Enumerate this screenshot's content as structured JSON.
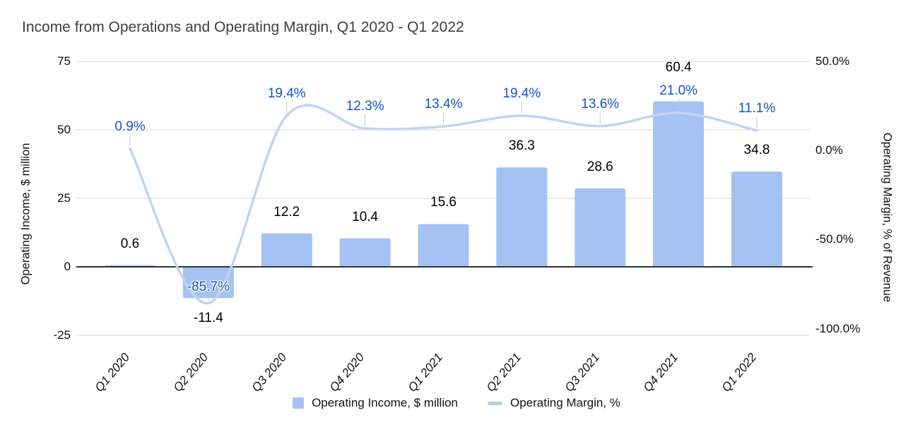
{
  "title": "Income from Operations and Operating Margin, Q1 2020 - Q1 2022",
  "axes": {
    "left": {
      "title": "Operating Income, $ million",
      "ticks": [
        {
          "label": "75",
          "value": 75
        },
        {
          "label": "50",
          "value": 50
        },
        {
          "label": "25",
          "value": 25
        },
        {
          "label": "0",
          "value": 0
        },
        {
          "label": "-25",
          "value": -25
        }
      ]
    },
    "right": {
      "title": "Operating Margin, % of Revenue",
      "ticks": [
        {
          "label": "50.0%",
          "value": 50
        },
        {
          "label": "0.0%",
          "value": 0
        },
        {
          "label": "-50.0%",
          "value": -50
        },
        {
          "label": "-100.0%",
          "value": -100
        }
      ]
    }
  },
  "legend": {
    "items": [
      {
        "label": "Operating Income, $ million",
        "marker": "square"
      },
      {
        "label": "Operating Margin, %",
        "marker": "line"
      }
    ]
  },
  "colors": {
    "bar": "#a4c2f4",
    "line": "#c3d3f1",
    "legend_line": "#b6cbee",
    "margin_label": "#1155cc",
    "bar_label": "#000000",
    "grid": "#d9d9d9",
    "zero_line": "#333333",
    "leader": "#c9c9c9",
    "title": "#3c4043"
  },
  "chart_data": {
    "type": "bar+line combo",
    "title": "Income from Operations and Operating Margin, Q1 2020 - Q1 2022",
    "categories": [
      "Q1 2020",
      "Q2 2020",
      "Q3 2020",
      "Q4 2020",
      "Q1 2021",
      "Q2 2021",
      "Q3 2021",
      "Q4 2021",
      "Q1 2022"
    ],
    "series": [
      {
        "name": "Operating Income, $ million",
        "type": "bar",
        "axis": "left",
        "values": [
          0.6,
          -11.4,
          12.2,
          10.4,
          15.6,
          36.3,
          28.6,
          60.4,
          34.8
        ],
        "labels": [
          "0.6",
          "-11.4",
          "12.2",
          "10.4",
          "15.6",
          "36.3",
          "28.6",
          "60.4",
          "34.8"
        ]
      },
      {
        "name": "Operating Margin, %",
        "type": "line",
        "axis": "right",
        "smooth": true,
        "values": [
          0.9,
          -85.7,
          19.4,
          12.3,
          13.4,
          19.4,
          13.6,
          21.0,
          11.1
        ],
        "labels": [
          "0.9%",
          "-85.7%",
          "19.4%",
          "12.3%",
          "13.4%",
          "19.4%",
          "13.6%",
          "21.0%",
          "11.1%"
        ]
      }
    ],
    "left_ylabel": "Operating Income, $ million",
    "right_ylabel": "Operating Margin, % of Revenue",
    "left_ylim": [
      -25,
      75
    ],
    "right_ylim": [
      -100,
      50
    ],
    "grid": true,
    "legend_position": "bottom"
  }
}
